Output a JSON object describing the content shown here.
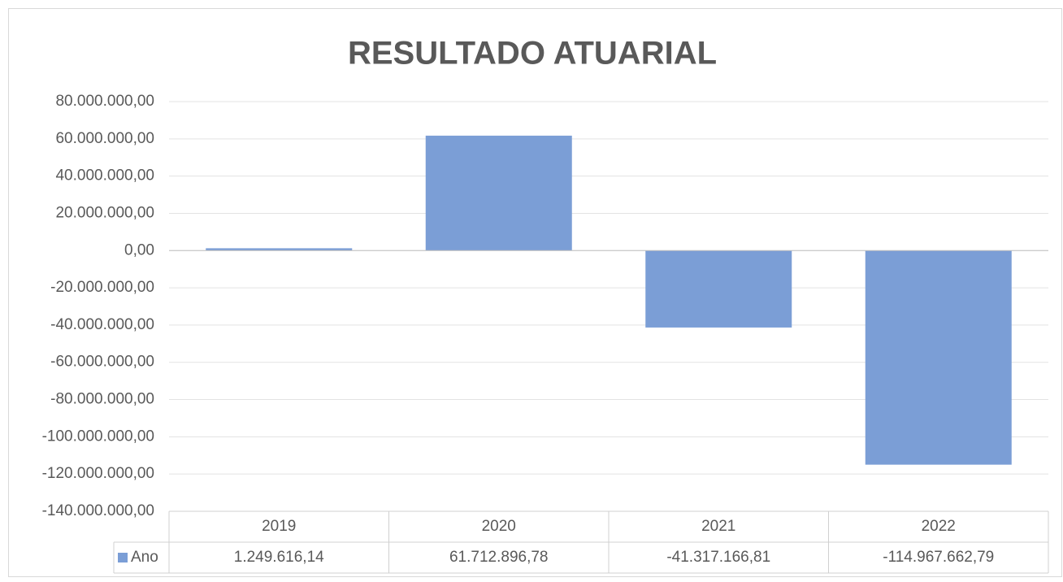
{
  "chart_data": {
    "type": "bar",
    "title": "RESULTADO ATUARIAL",
    "categories": [
      "2019",
      "2020",
      "2021",
      "2022"
    ],
    "series": [
      {
        "name": "Ano",
        "color": "#7b9ed6",
        "values": [
          1249616.14,
          61712896.78,
          -41317166.81,
          -114967662.79
        ],
        "value_labels": [
          "1.249.616,14",
          "61.712.896,78",
          "-41.317.166,81",
          "-114.967.662,79"
        ]
      }
    ],
    "ylim": [
      -140000000,
      80000000
    ],
    "yticks": [
      {
        "value": 80000000,
        "label": "80.000.000,00"
      },
      {
        "value": 60000000,
        "label": "60.000.000,00"
      },
      {
        "value": 40000000,
        "label": "40.000.000,00"
      },
      {
        "value": 20000000,
        "label": "20.000.000,00"
      },
      {
        "value": 0,
        "label": "0,00"
      },
      {
        "value": -20000000,
        "label": "-20.000.000,00"
      },
      {
        "value": -40000000,
        "label": "-40.000.000,00"
      },
      {
        "value": -60000000,
        "label": "-60.000.000,00"
      },
      {
        "value": -80000000,
        "label": "-80.000.000,00"
      },
      {
        "value": -100000000,
        "label": "-100.000.000,00"
      },
      {
        "value": -120000000,
        "label": "-120.000.000,00"
      },
      {
        "value": -140000000,
        "label": "-140.000.000,00"
      }
    ],
    "grid": true,
    "data_table": true
  }
}
